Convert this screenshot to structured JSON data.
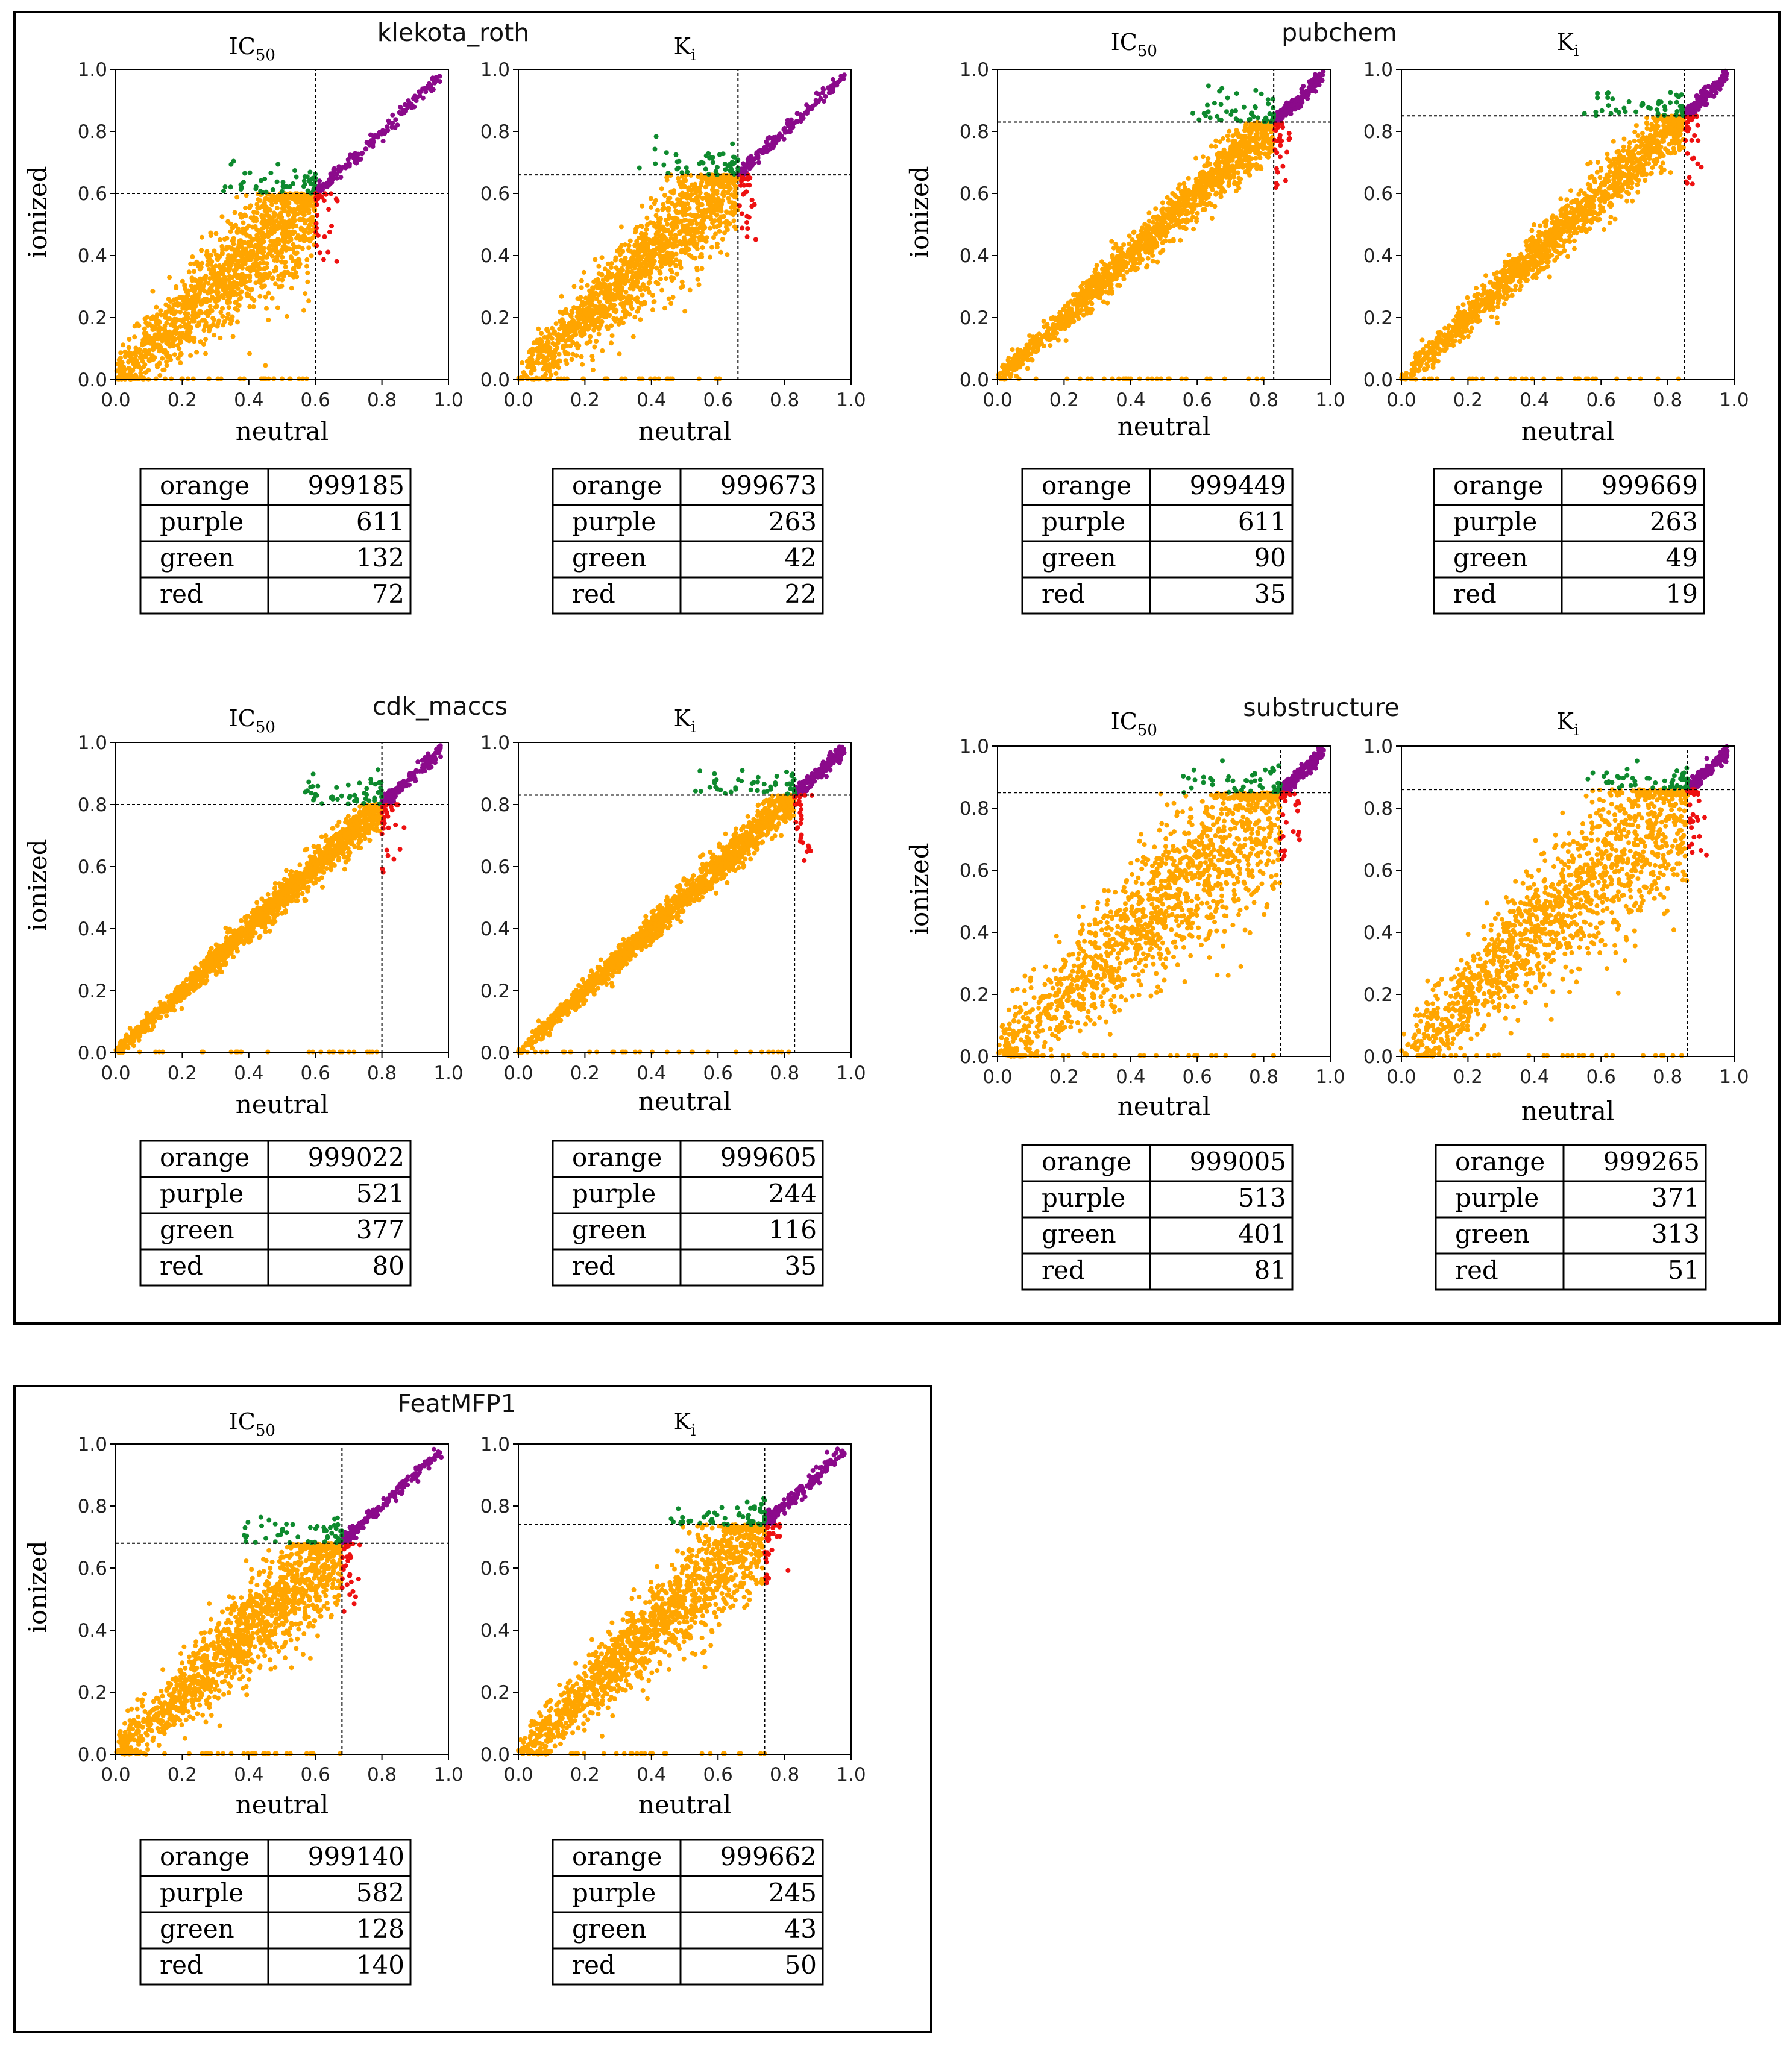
{
  "axis": {
    "xlabel": "neutral",
    "ylabel": "ionized",
    "ticks": [
      "0.0",
      "0.2",
      "0.4",
      "0.6",
      "0.8",
      "1.0"
    ]
  },
  "colors": {
    "orange": "#FFA500",
    "purple": "#8B0A8B",
    "green": "#0E8A2E",
    "red": "#EE1111"
  },
  "chart_data": [
    {
      "type": "scatter",
      "group": "klekota_roth",
      "panels": [
        {
          "title_base": "IC",
          "title_sub": "50",
          "threshold": 0.6,
          "spread": 0.12,
          "rows": [
            {
              "label": "orange",
              "value": "999185"
            },
            {
              "label": "purple",
              "value": "611"
            },
            {
              "label": "green",
              "value": "132"
            },
            {
              "label": "red",
              "value": "72"
            }
          ]
        },
        {
          "title_base": "K",
          "title_sub": "i",
          "threshold": 0.66,
          "spread": 0.1,
          "rows": [
            {
              "label": "orange",
              "value": "999673"
            },
            {
              "label": "purple",
              "value": "263"
            },
            {
              "label": "green",
              "value": "42"
            },
            {
              "label": "red",
              "value": "22"
            }
          ]
        }
      ]
    },
    {
      "type": "scatter",
      "group": "pubchem",
      "panels": [
        {
          "title_base": "IC",
          "title_sub": "50",
          "threshold": 0.83,
          "spread": 0.05,
          "rows": [
            {
              "label": "orange",
              "value": "999449"
            },
            {
              "label": "purple",
              "value": "611"
            },
            {
              "label": "green",
              "value": "90"
            },
            {
              "label": "red",
              "value": "35"
            }
          ]
        },
        {
          "title_base": "K",
          "title_sub": "i",
          "threshold": 0.85,
          "spread": 0.055,
          "rows": [
            {
              "label": "orange",
              "value": "999669"
            },
            {
              "label": "purple",
              "value": "263"
            },
            {
              "label": "green",
              "value": "49"
            },
            {
              "label": "red",
              "value": "19"
            }
          ]
        }
      ]
    },
    {
      "type": "scatter",
      "group": "cdk_maccs",
      "panels": [
        {
          "title_base": "IC",
          "title_sub": "50",
          "threshold": 0.8,
          "spread": 0.035,
          "rows": [
            {
              "label": "orange",
              "value": "999022"
            },
            {
              "label": "purple",
              "value": "521"
            },
            {
              "label": "green",
              "value": "377"
            },
            {
              "label": "red",
              "value": "80"
            }
          ]
        },
        {
          "title_base": "K",
          "title_sub": "i",
          "threshold": 0.83,
          "spread": 0.035,
          "rows": [
            {
              "label": "orange",
              "value": "999605"
            },
            {
              "label": "purple",
              "value": "244"
            },
            {
              "label": "green",
              "value": "116"
            },
            {
              "label": "red",
              "value": "35"
            }
          ]
        }
      ]
    },
    {
      "type": "scatter",
      "group": "substructure",
      "panels": [
        {
          "title_base": "IC",
          "title_sub": "50",
          "threshold": 0.85,
          "spread": 0.16,
          "rows": [
            {
              "label": "orange",
              "value": "999005"
            },
            {
              "label": "purple",
              "value": "513"
            },
            {
              "label": "green",
              "value": "401"
            },
            {
              "label": "red",
              "value": "81"
            }
          ]
        },
        {
          "title_base": "K",
          "title_sub": "i",
          "threshold": 0.86,
          "spread": 0.16,
          "rows": [
            {
              "label": "orange",
              "value": "999265"
            },
            {
              "label": "purple",
              "value": "371"
            },
            {
              "label": "green",
              "value": "313"
            },
            {
              "label": "red",
              "value": "51"
            }
          ]
        }
      ]
    },
    {
      "type": "scatter",
      "group": "FeatMFP1",
      "panels": [
        {
          "title_base": "IC",
          "title_sub": "50",
          "threshold": 0.68,
          "spread": 0.1,
          "rows": [
            {
              "label": "orange",
              "value": "999140"
            },
            {
              "label": "purple",
              "value": "582"
            },
            {
              "label": "green",
              "value": "128"
            },
            {
              "label": "red",
              "value": "140"
            }
          ]
        },
        {
          "title_base": "K",
          "title_sub": "i",
          "threshold": 0.74,
          "spread": 0.1,
          "rows": [
            {
              "label": "orange",
              "value": "999662"
            },
            {
              "label": "purple",
              "value": "245"
            },
            {
              "label": "green",
              "value": "43"
            },
            {
              "label": "red",
              "value": "50"
            }
          ]
        }
      ]
    }
  ]
}
